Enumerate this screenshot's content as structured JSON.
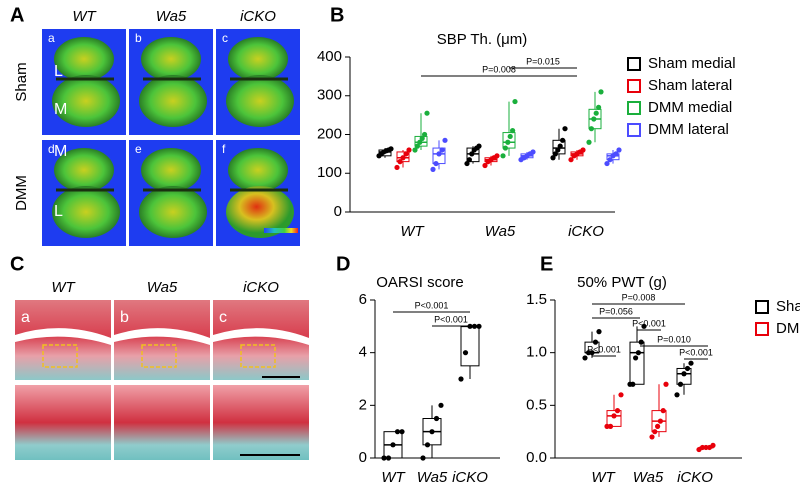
{
  "figure": {
    "panel_a": {
      "label": "A",
      "columns": [
        "WT",
        "Wa5",
        "iCKO"
      ],
      "rows": [
        "Sham",
        "DMM"
      ],
      "tiles": [
        "a",
        "b",
        "c",
        "d",
        "e",
        "f"
      ],
      "sides": [
        "L",
        "M",
        "M",
        "L"
      ]
    },
    "panel_c": {
      "label": "C",
      "columns": [
        "WT",
        "Wa5",
        "iCKO"
      ],
      "tiles": [
        "a",
        "b",
        "c"
      ]
    }
  },
  "chart_data": [
    {
      "type": "box",
      "panel_label": "B",
      "title": "SBP Th. (μm)",
      "categories": [
        "WT",
        "Wa5",
        "iCKO"
      ],
      "ylim": [
        0,
        400
      ],
      "yticks": [
        0,
        100,
        200,
        300,
        400
      ],
      "legend": "right",
      "series": [
        {
          "name": "Sham medial",
          "color": "#000000",
          "boxes": [
            {
              "min": 140,
              "q1": 145,
              "median": 155,
              "q3": 160,
              "max": 165,
              "points": [
                145,
                150,
                155,
                158,
                160,
                163
              ]
            },
            {
              "min": 125,
              "q1": 130,
              "median": 150,
              "q3": 165,
              "max": 170,
              "points": [
                125,
                135,
                150,
                160,
                165,
                170
              ]
            },
            {
              "min": 135,
              "q1": 150,
              "median": 165,
              "q3": 185,
              "max": 215,
              "points": [
                140,
                150,
                160,
                170,
                185,
                215
              ]
            }
          ]
        },
        {
          "name": "Sham lateral",
          "color": "#e8000b",
          "boxes": [
            {
              "min": 115,
              "q1": 130,
              "median": 140,
              "q3": 155,
              "max": 160,
              "points": [
                115,
                130,
                140,
                150,
                160
              ]
            },
            {
              "min": 120,
              "q1": 130,
              "median": 135,
              "q3": 140,
              "max": 145,
              "points": [
                120,
                130,
                135,
                140,
                145
              ]
            },
            {
              "min": 135,
              "q1": 145,
              "median": 150,
              "q3": 155,
              "max": 160,
              "points": [
                135,
                145,
                150,
                155,
                160
              ]
            }
          ]
        },
        {
          "name": "DMM medial",
          "color": "#1aaf3c",
          "boxes": [
            {
              "min": 160,
              "q1": 170,
              "median": 180,
              "q3": 195,
              "max": 255,
              "points": [
                160,
                170,
                180,
                190,
                200,
                255
              ]
            },
            {
              "min": 145,
              "q1": 165,
              "median": 180,
              "q3": 205,
              "max": 285,
              "points": [
                145,
                165,
                180,
                195,
                210,
                285
              ]
            },
            {
              "min": 180,
              "q1": 215,
              "median": 240,
              "q3": 265,
              "max": 310,
              "points": [
                180,
                215,
                240,
                255,
                270,
                310
              ]
            }
          ]
        },
        {
          "name": "DMM lateral",
          "color": "#4c4cff",
          "boxes": [
            {
              "min": 110,
              "q1": 125,
              "median": 150,
              "q3": 165,
              "max": 185,
              "points": [
                110,
                125,
                150,
                160,
                185
              ]
            },
            {
              "min": 135,
              "q1": 140,
              "median": 145,
              "q3": 150,
              "max": 155,
              "points": [
                135,
                140,
                145,
                150,
                155
              ]
            },
            {
              "min": 125,
              "q1": 135,
              "median": 145,
              "q3": 150,
              "max": 160,
              "points": [
                125,
                135,
                145,
                150,
                160
              ]
            }
          ]
        }
      ],
      "annotations": [
        "P=0.008",
        "P=0.015"
      ]
    },
    {
      "type": "box",
      "panel_label": "D",
      "title": "OARSI score",
      "categories": [
        "WT",
        "Wa5",
        "iCKO"
      ],
      "ylim": [
        0,
        6
      ],
      "yticks": [
        0,
        2,
        4,
        6
      ],
      "series": [
        {
          "color": "#000000",
          "boxes": [
            {
              "min": 0,
              "q1": 0,
              "median": 0.5,
              "q3": 1,
              "max": 1,
              "points": [
                0,
                0,
                0.5,
                1,
                1
              ]
            },
            {
              "min": 0,
              "q1": 0.5,
              "median": 1,
              "q3": 1.5,
              "max": 2,
              "points": [
                0,
                0.5,
                1,
                1.5,
                2
              ]
            },
            {
              "min": 3,
              "q1": 3.5,
              "median": 5,
              "q3": 5,
              "max": 5,
              "points": [
                3,
                4,
                5,
                5,
                5
              ]
            }
          ]
        }
      ],
      "annotations": [
        "P<0.001",
        "P<0.001"
      ]
    },
    {
      "type": "box",
      "panel_label": "E",
      "title": "50% PWT (g)",
      "categories": [
        "WT",
        "Wa5",
        "iCKO"
      ],
      "ylim": [
        0,
        1.5
      ],
      "yticks": [
        {
          "value": 0,
          "label": "0.0"
        },
        0.5,
        {
          "value": 1,
          "label": "1.0"
        },
        1.5
      ],
      "legend": "right",
      "series": [
        {
          "name": "Sham",
          "color": "#000000",
          "boxes": [
            {
              "min": 0.95,
              "q1": 1.0,
              "median": 1.0,
              "q3": 1.1,
              "max": 1.2,
              "points": [
                0.95,
                1.0,
                1.0,
                1.1,
                1.2
              ]
            },
            {
              "min": 0.7,
              "q1": 0.7,
              "median": 1.0,
              "q3": 1.1,
              "max": 1.25,
              "points": [
                0.7,
                0.7,
                0.95,
                1.0,
                1.1,
                1.25
              ]
            },
            {
              "min": 0.6,
              "q1": 0.7,
              "median": 0.8,
              "q3": 0.85,
              "max": 0.9,
              "points": [
                0.6,
                0.7,
                0.8,
                0.85,
                0.9
              ]
            }
          ]
        },
        {
          "name": "DMM",
          "color": "#e8000b",
          "boxes": [
            {
              "min": 0.3,
              "q1": 0.3,
              "median": 0.4,
              "q3": 0.45,
              "max": 0.6,
              "points": [
                0.3,
                0.3,
                0.4,
                0.45,
                0.6
              ]
            },
            {
              "min": 0.2,
              "q1": 0.25,
              "median": 0.35,
              "q3": 0.45,
              "max": 0.7,
              "points": [
                0.2,
                0.25,
                0.3,
                0.35,
                0.45,
                0.7
              ]
            },
            {
              "min": 0.08,
              "q1": 0.1,
              "median": 0.1,
              "q3": 0.1,
              "max": 0.12,
              "points": [
                0.08,
                0.1,
                0.1,
                0.1,
                0.12
              ]
            }
          ]
        }
      ],
      "annotations": [
        "P<0.001",
        "P<0.001",
        "P=0.056",
        "P=0.008",
        "P=0.010",
        "P<0.001"
      ]
    }
  ]
}
